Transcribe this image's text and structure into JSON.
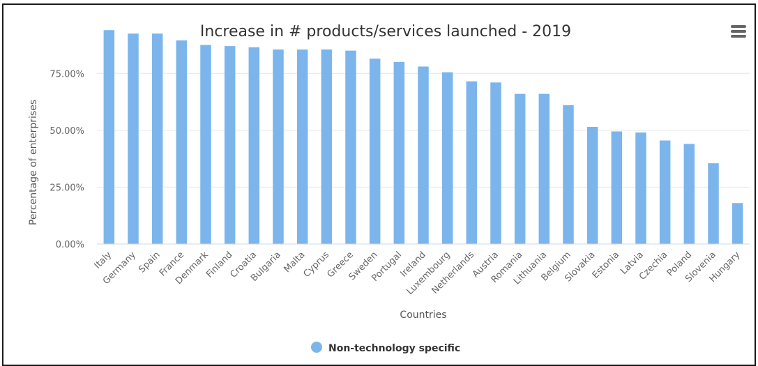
{
  "menu": {
    "icon": "hamburger-menu-icon"
  },
  "chart_data": {
    "type": "bar",
    "title": "Increase in # products/services launched - 2019",
    "xlabel": "Countries",
    "ylabel": "Percentage of enterprises",
    "ylim": [
      0,
      95
    ],
    "yticks": [
      0,
      25,
      50,
      75
    ],
    "ytick_labels": [
      "0.00%",
      "25.00%",
      "50.00%",
      "75.00%"
    ],
    "grid": true,
    "legend": "bottom-center",
    "categories": [
      "Italy",
      "Germany",
      "Spain",
      "France",
      "Denmark",
      "Finland",
      "Croatia",
      "Bulgaria",
      "Malta",
      "Cyprus",
      "Greece",
      "Sweden",
      "Portugal",
      "Ireland",
      "Luxembourg",
      "Netherlands",
      "Austria",
      "Romania",
      "Lithuania",
      "Belgium",
      "Slovakia",
      "Estonia",
      "Latvia",
      "Czechia",
      "Poland",
      "Slovenia",
      "Hungary"
    ],
    "series": [
      {
        "name": "Non-technology specific",
        "color": "#7cb5ec",
        "values": [
          94,
          92.5,
          92.5,
          89.5,
          87.5,
          87,
          86.5,
          85.5,
          85.5,
          85.5,
          85,
          81.5,
          80,
          78,
          75.5,
          71.5,
          71,
          66,
          66,
          61,
          51.5,
          49.5,
          49,
          45.5,
          44,
          35.5,
          18
        ]
      }
    ]
  }
}
